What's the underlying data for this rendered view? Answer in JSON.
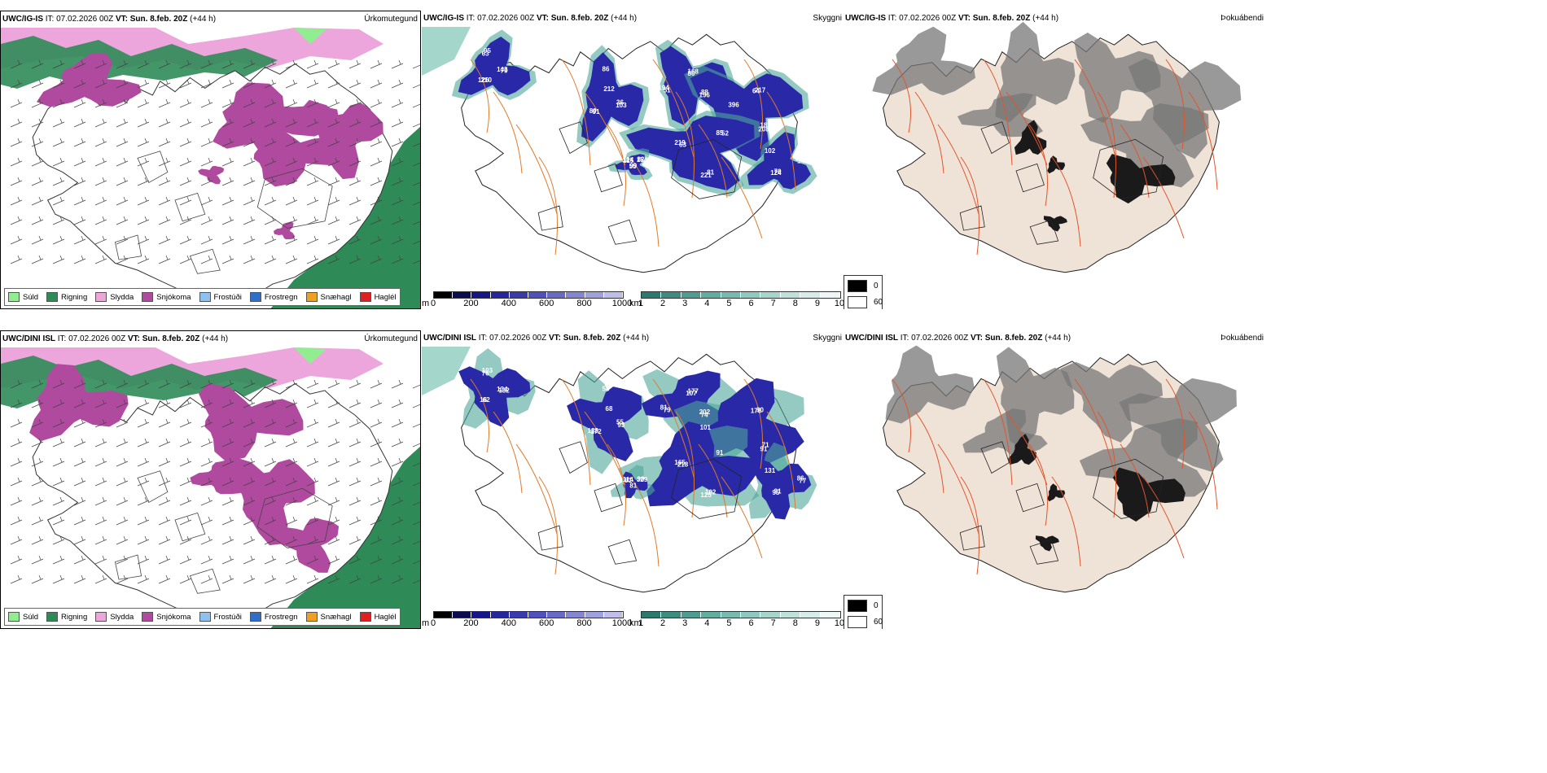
{
  "rows": [
    {
      "precip": {
        "model": "UWC/IG-IS",
        "it": "IT: 07.02.2026 00Z",
        "vt_label": "VT:",
        "vt": "Sun. 8.feb. 20Z",
        "lead": "(+44 h)",
        "right_title": "Úrkomutegund"
      },
      "cloud": {
        "model": "UWC/IG-IS",
        "it": "IT: 07.02.2026 00Z",
        "vt_label": "VT:",
        "vt": "Sun. 8.feb. 20Z",
        "lead": "(+44 h)",
        "left_title": "Skyggni",
        "right_title": "Þokuábendi"
      }
    },
    {
      "precip": {
        "model": "UWC/DINI ISL",
        "it": "IT: 07.02.2026 00Z",
        "vt_label": "VT:",
        "vt": "Sun. 8.feb. 20Z",
        "lead": "(+44 h)",
        "right_title": "Úrkomutegund"
      },
      "cloud": {
        "model": "UWC/DINI ISL",
        "it": "IT: 07.02.2026 00Z",
        "vt_label": "VT:",
        "vt": "Sun. 8.feb. 20Z",
        "lead": "(+44 h)",
        "left_title": "Skyggni",
        "right_title": "Þokuábendi"
      }
    }
  ],
  "precip_legend": [
    {
      "label": "Súld",
      "color": "#90EE90"
    },
    {
      "label": "Rigning",
      "color": "#2E8B57"
    },
    {
      "label": "Slydda",
      "color": "#EDA6DC"
    },
    {
      "label": "Snjókoma",
      "color": "#B04A9E"
    },
    {
      "label": "Frostúði",
      "color": "#8EC0F0"
    },
    {
      "label": "Frostregn",
      "color": "#2F6FC9"
    },
    {
      "label": "Snæhagl",
      "color": "#F0A020"
    },
    {
      "label": "Haglél",
      "color": "#E02020"
    }
  ],
  "colorbar_m": {
    "unit": "m",
    "ticks": [
      "0",
      "200",
      "400",
      "600",
      "800",
      "1000"
    ]
  },
  "colorbar_km": {
    "unit": "km",
    "ticks": [
      "1",
      "2",
      "3",
      "4",
      "5",
      "6",
      "7",
      "8",
      "9",
      "10"
    ]
  },
  "cloud_legend": {
    "black_label": "0",
    "white_label": "60"
  },
  "cloud_labels": [
    [
      "143",
      "91",
      "80",
      "182",
      "63",
      "82",
      "70",
      "63",
      "36",
      "51",
      "64",
      "81",
      "125",
      "137",
      "210",
      "86",
      "88",
      "72",
      "85",
      "99",
      "102",
      "79",
      "80",
      "168",
      "208",
      "219",
      "154",
      "124",
      "95",
      "103",
      "194",
      "217",
      "221",
      "124",
      "143",
      "126",
      "212",
      "196",
      "396",
      "52",
      "55"
    ],
    [
      "134",
      "172",
      "107",
      "71",
      "218",
      "90",
      "81",
      "76",
      "55",
      "79",
      "176",
      "102",
      "81",
      "86",
      "62",
      "58",
      "202",
      "101",
      "91",
      "81",
      "131",
      "132",
      "138",
      "177",
      "91",
      "165",
      "329",
      "95",
      "103",
      "93",
      "81",
      "90",
      "125",
      "114",
      "77",
      "16",
      "68",
      "74"
    ]
  ],
  "colors": {
    "rain": "#2E8B57",
    "snow": "#B04A9E",
    "sleet": "#EDA6DC",
    "drizzle": "#90EE90",
    "roads": "#E07A2A",
    "land": "#EFE3D7",
    "cloud_dark": "#1A1A1A"
  }
}
